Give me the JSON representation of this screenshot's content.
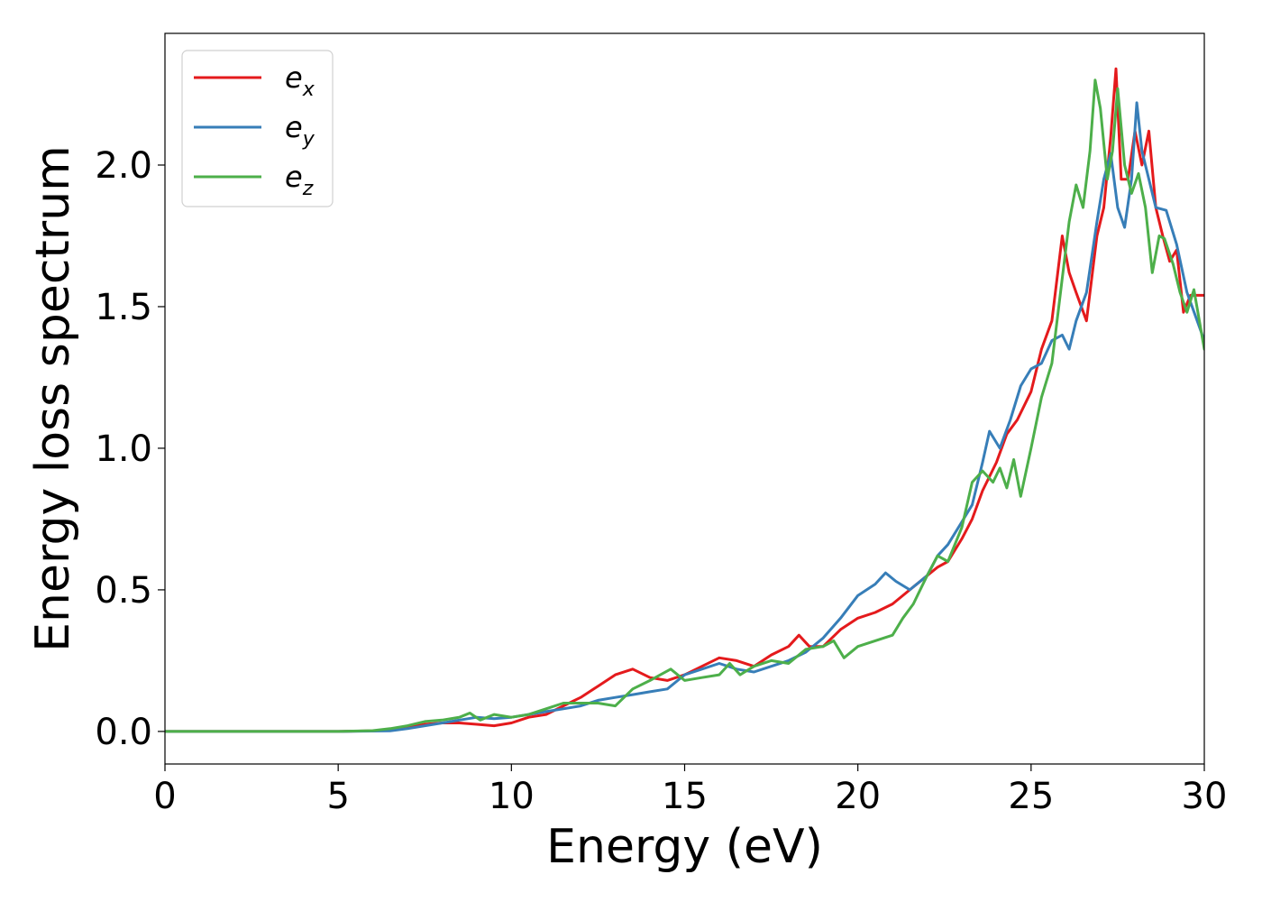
{
  "chart_data": {
    "type": "line",
    "xlabel": "Energy (eV)",
    "ylabel": "Energy loss spectrum",
    "xlim": [
      0,
      30
    ],
    "ylim": [
      -0.115,
      2.465
    ],
    "xticks": [
      0,
      5,
      10,
      15,
      20,
      25,
      30
    ],
    "xtick_labels": [
      "0",
      "5",
      "10",
      "15",
      "20",
      "25",
      "30"
    ],
    "yticks": [
      0.0,
      0.5,
      1.0,
      1.5,
      2.0
    ],
    "ytick_labels": [
      "0.0",
      "0.5",
      "1.0",
      "1.5",
      "2.0"
    ],
    "grid": false,
    "legend_position": "top-left",
    "series": [
      {
        "name": "e_x",
        "label_main": "e",
        "label_sub": "x",
        "color": "#e41a1c",
        "x": [
          0,
          5,
          6,
          6.5,
          7,
          7.5,
          8,
          8.5,
          9,
          9.5,
          10,
          10.5,
          11,
          11.5,
          12,
          12.5,
          13,
          13.5,
          14,
          14.5,
          15,
          15.5,
          16,
          16.5,
          17,
          17.5,
          18,
          18.3,
          18.6,
          19,
          19.5,
          20,
          20.5,
          21,
          21.5,
          22,
          22.3,
          22.6,
          23,
          23.3,
          23.6,
          24,
          24.3,
          24.6,
          25,
          25.3,
          25.6,
          25.9,
          26.1,
          26.3,
          26.6,
          26.9,
          27.1,
          27.3,
          27.45,
          27.6,
          27.8,
          28,
          28.2,
          28.4,
          28.6,
          28.8,
          29,
          29.2,
          29.4,
          29.6,
          30
        ],
        "y": [
          0.0,
          0.0,
          0.002,
          0.005,
          0.015,
          0.025,
          0.03,
          0.03,
          0.025,
          0.02,
          0.03,
          0.05,
          0.06,
          0.09,
          0.12,
          0.16,
          0.2,
          0.22,
          0.19,
          0.18,
          0.2,
          0.23,
          0.26,
          0.25,
          0.23,
          0.27,
          0.3,
          0.34,
          0.3,
          0.3,
          0.36,
          0.4,
          0.42,
          0.45,
          0.5,
          0.55,
          0.58,
          0.6,
          0.68,
          0.75,
          0.85,
          0.95,
          1.05,
          1.1,
          1.2,
          1.35,
          1.45,
          1.75,
          1.62,
          1.55,
          1.45,
          1.75,
          1.85,
          2.1,
          2.34,
          1.95,
          1.95,
          2.12,
          2.0,
          2.12,
          1.85,
          1.75,
          1.66,
          1.7,
          1.48,
          1.54,
          1.54
        ]
      },
      {
        "name": "e_y",
        "label_main": "e",
        "label_sub": "y",
        "color": "#377eb8",
        "x": [
          0,
          5,
          6.5,
          7,
          7.5,
          8,
          8.5,
          9,
          9.5,
          10,
          10.5,
          11,
          11.5,
          12,
          12.5,
          13,
          13.5,
          14,
          14.5,
          15,
          15.5,
          16,
          16.5,
          17,
          17.5,
          18,
          18.5,
          19,
          19.5,
          20,
          20.5,
          20.8,
          21.1,
          21.5,
          22,
          22.3,
          22.6,
          23,
          23.3,
          23.6,
          23.8,
          24.1,
          24.4,
          24.7,
          25,
          25.3,
          25.6,
          25.9,
          26.1,
          26.3,
          26.6,
          26.9,
          27.1,
          27.3,
          27.5,
          27.7,
          27.9,
          28.05,
          28.2,
          28.4,
          28.6,
          28.9,
          29.2,
          29.5,
          30
        ],
        "y": [
          0.0,
          0.0,
          0.002,
          0.01,
          0.02,
          0.03,
          0.04,
          0.05,
          0.045,
          0.05,
          0.06,
          0.07,
          0.08,
          0.09,
          0.11,
          0.12,
          0.13,
          0.14,
          0.15,
          0.2,
          0.22,
          0.24,
          0.22,
          0.21,
          0.23,
          0.25,
          0.28,
          0.33,
          0.4,
          0.48,
          0.52,
          0.56,
          0.53,
          0.5,
          0.55,
          0.62,
          0.66,
          0.74,
          0.8,
          0.95,
          1.06,
          1.0,
          1.1,
          1.22,
          1.28,
          1.3,
          1.38,
          1.4,
          1.35,
          1.45,
          1.55,
          1.8,
          1.95,
          2.04,
          1.85,
          1.78,
          1.95,
          2.22,
          2.05,
          1.95,
          1.85,
          1.84,
          1.72,
          1.55,
          1.38
        ]
      },
      {
        "name": "e_z",
        "label_main": "e",
        "label_sub": "z",
        "color": "#4daf4a",
        "x": [
          0,
          5,
          6,
          6.5,
          7,
          7.5,
          8,
          8.5,
          8.8,
          9.1,
          9.5,
          10,
          10.5,
          11,
          11.5,
          12,
          12.5,
          13,
          13.5,
          14,
          14.3,
          14.6,
          15,
          15.5,
          16,
          16.3,
          16.6,
          17,
          17.5,
          18,
          18.5,
          19,
          19.3,
          19.6,
          20,
          20.5,
          21,
          21.3,
          21.6,
          22,
          22.3,
          22.6,
          23,
          23.3,
          23.6,
          23.9,
          24.1,
          24.3,
          24.5,
          24.7,
          25,
          25.3,
          25.6,
          25.9,
          26.1,
          26.3,
          26.5,
          26.7,
          26.85,
          27.0,
          27.2,
          27.35,
          27.5,
          27.7,
          27.9,
          28.1,
          28.3,
          28.5,
          28.7,
          28.85,
          29.1,
          29.3,
          29.5,
          29.7,
          30
        ],
        "y": [
          0.0,
          0.0,
          0.003,
          0.01,
          0.02,
          0.035,
          0.04,
          0.05,
          0.065,
          0.04,
          0.06,
          0.05,
          0.06,
          0.08,
          0.1,
          0.1,
          0.1,
          0.09,
          0.15,
          0.18,
          0.2,
          0.22,
          0.18,
          0.19,
          0.2,
          0.24,
          0.2,
          0.23,
          0.25,
          0.24,
          0.29,
          0.3,
          0.32,
          0.26,
          0.3,
          0.32,
          0.34,
          0.4,
          0.45,
          0.55,
          0.62,
          0.6,
          0.72,
          0.88,
          0.92,
          0.88,
          0.93,
          0.86,
          0.96,
          0.83,
          1.0,
          1.18,
          1.3,
          1.6,
          1.8,
          1.93,
          1.85,
          2.05,
          2.3,
          2.2,
          1.95,
          2.05,
          2.27,
          2.0,
          1.9,
          1.97,
          1.85,
          1.62,
          1.75,
          1.74,
          1.65,
          1.55,
          1.48,
          1.56,
          1.35
        ]
      }
    ]
  }
}
